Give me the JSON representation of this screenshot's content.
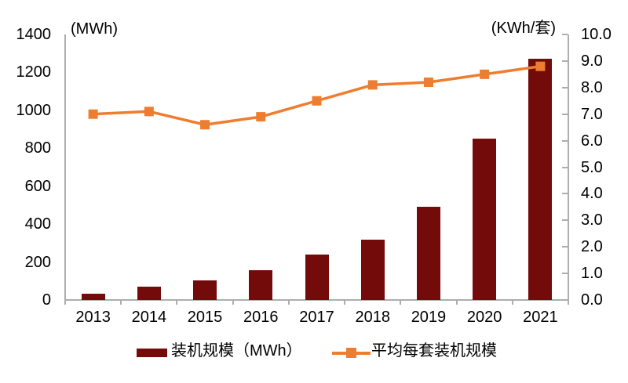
{
  "chart_data": {
    "type": "bar+line",
    "categories": [
      "2013",
      "2014",
      "2015",
      "2016",
      "2017",
      "2018",
      "2019",
      "2020",
      "2021"
    ],
    "series": [
      {
        "name": "装机规模（MWh）",
        "type": "bar",
        "axis": "left",
        "color": "#740B0B",
        "values": [
          35,
          70,
          105,
          155,
          240,
          320,
          490,
          850,
          1270
        ]
      },
      {
        "name": "平均每套装机规模",
        "type": "line",
        "axis": "right",
        "color": "#EE7D2F",
        "marker": "square",
        "values": [
          7.0,
          7.1,
          6.6,
          6.9,
          7.5,
          8.1,
          8.2,
          8.5,
          8.8
        ]
      }
    ],
    "left_axis": {
      "label": "(MWh)",
      "min": 0,
      "max": 1400,
      "tick_step": 200,
      "tick_labels": [
        "1400",
        "1200",
        "1000",
        "800",
        "600",
        "400",
        "200",
        "0"
      ]
    },
    "right_axis": {
      "label": "(KWh/套)",
      "min": 0,
      "max": 10,
      "tick_step": 1,
      "tick_labels": [
        "10.0",
        "9.0",
        "8.0",
        "7.0",
        "6.0",
        "5.0",
        "4.0",
        "3.0",
        "2.0",
        "1.0",
        "0.0"
      ]
    },
    "grid": false,
    "legend_position": "bottom",
    "axis_color": "#ADADAD"
  }
}
